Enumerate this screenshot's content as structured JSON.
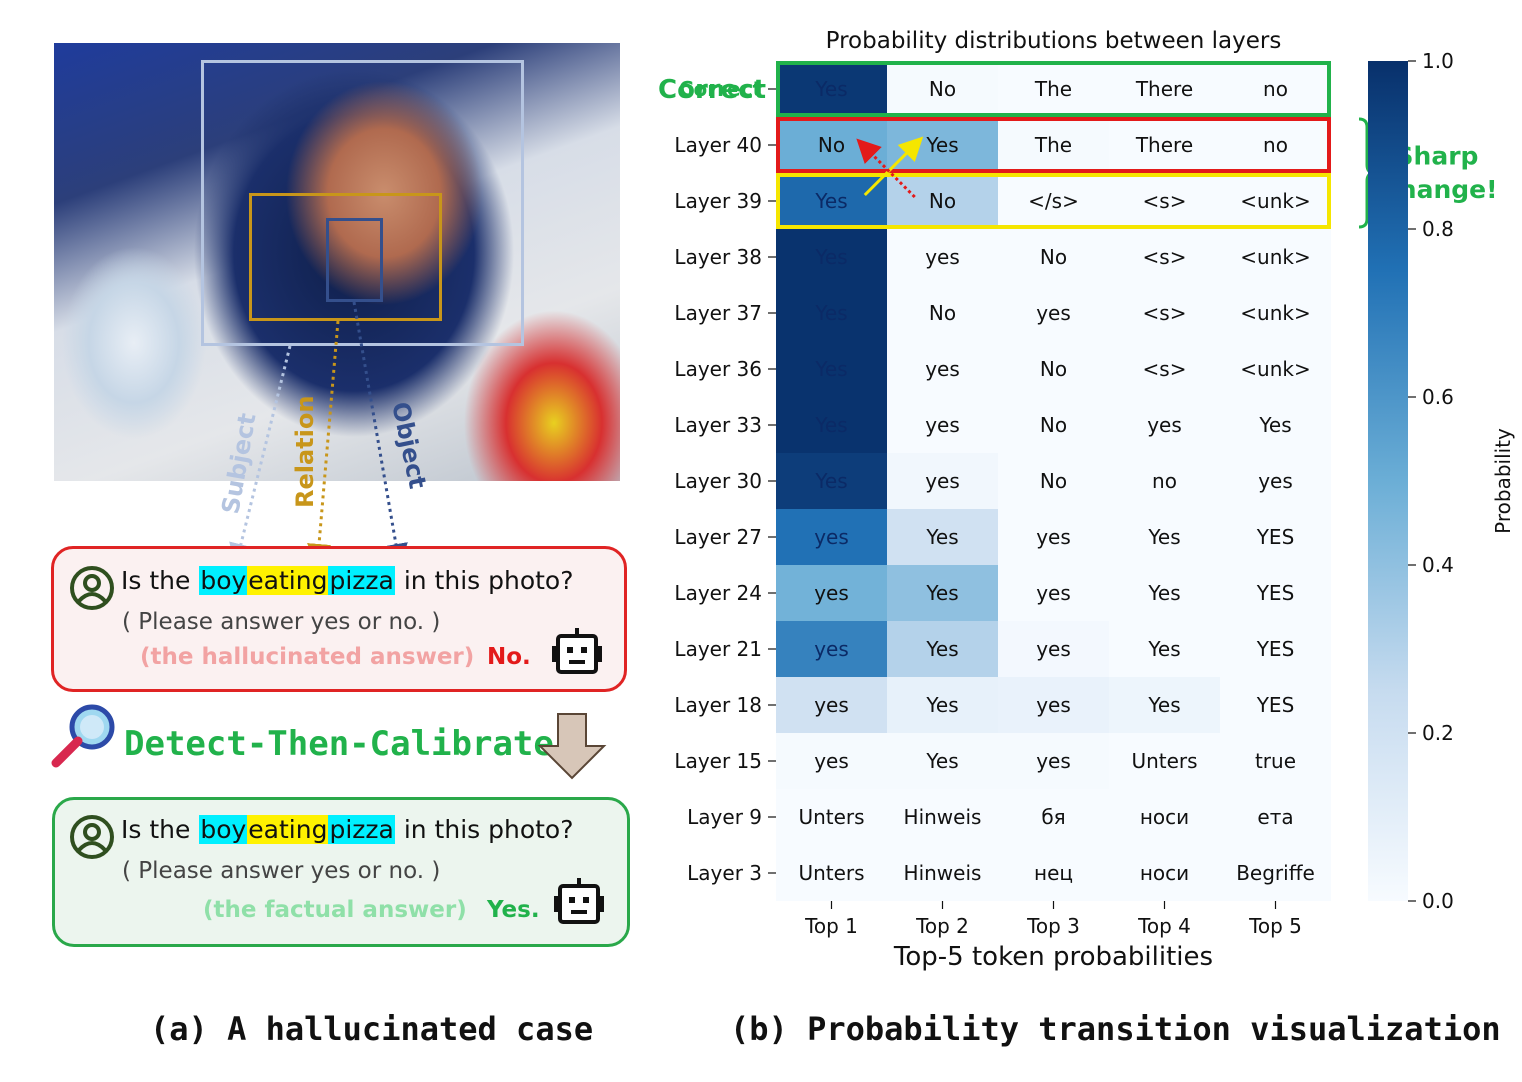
{
  "panel_a": {
    "caption": "(a) A hallucinated case",
    "arrow_labels": {
      "subject": "Subject",
      "relation": "Relation",
      "object": "Object"
    },
    "hallucinated": {
      "q_prefix": "Is the",
      "w_boy": "boy",
      "w_eating": "eating",
      "w_pizza": "pizza",
      "q_suffix": "in this photo?",
      "instruction": "( Please answer yes or no. )",
      "answer_note": "(the hallucinated answer)",
      "answer": "No."
    },
    "method": "Detect-Then-Calibrate",
    "factual": {
      "q_prefix": "Is the",
      "w_boy": "boy",
      "w_eating": "eating",
      "w_pizza": "pizza",
      "q_suffix": "in this photo?",
      "instruction": "( Please answer yes or no. )",
      "answer_note": "(the factual answer)",
      "answer": "Yes."
    },
    "colors": {
      "subject": "#b4c4e0",
      "relation": "#c8961a",
      "object": "#344f8c",
      "bad": "#e31a1a",
      "good": "#21b24b"
    }
  },
  "panel_b": {
    "caption": "(b) Probability transition visualization",
    "annotation_correct": "Correct",
    "annotation_sharp_1": "Sharp",
    "annotation_sharp_2": "Change!"
  },
  "chart_data": {
    "type": "heatmap",
    "title": "Probability distributions between layers",
    "xlabel": "Top-5 token probabilities",
    "colorbar_label": "Probability",
    "colorbar_range": [
      0.0,
      1.0
    ],
    "colorbar_ticks": [
      "0.0",
      "0.2",
      "0.4",
      "0.6",
      "0.8",
      "1.0"
    ],
    "columns": [
      "Top 1",
      "Top 2",
      "Top 3",
      "Top 4",
      "Top 5"
    ],
    "rows": [
      {
        "label": "Correct",
        "tokens": [
          "Yes",
          "No",
          "The",
          "There",
          "no"
        ],
        "probs": [
          0.97,
          0.01,
          0.0,
          0.0,
          0.0
        ]
      },
      {
        "label": "Layer 40",
        "tokens": [
          "No",
          "Yes",
          "The",
          "There",
          "no"
        ],
        "probs": [
          0.5,
          0.45,
          0.01,
          0.0,
          0.0
        ]
      },
      {
        "label": "Layer 39",
        "tokens": [
          "Yes",
          "No",
          "</s>",
          "<s>",
          "<unk>"
        ],
        "probs": [
          0.78,
          0.3,
          0.0,
          0.0,
          0.0
        ]
      },
      {
        "label": "Layer 38",
        "tokens": [
          "Yes",
          "yes",
          "No",
          "<s>",
          "<unk>"
        ],
        "probs": [
          0.99,
          0.0,
          0.0,
          0.0,
          0.0
        ]
      },
      {
        "label": "Layer 37",
        "tokens": [
          "Yes",
          "No",
          "yes",
          "<s>",
          "<unk>"
        ],
        "probs": [
          0.99,
          0.0,
          0.0,
          0.0,
          0.0
        ]
      },
      {
        "label": "Layer 36",
        "tokens": [
          "Yes",
          "yes",
          "No",
          "<s>",
          "<unk>"
        ],
        "probs": [
          0.99,
          0.0,
          0.0,
          0.0,
          0.0
        ]
      },
      {
        "label": "Layer 33",
        "tokens": [
          "Yes",
          "yes",
          "No",
          "yes",
          "Yes"
        ],
        "probs": [
          0.99,
          0.0,
          0.0,
          0.0,
          0.0
        ]
      },
      {
        "label": "Layer 30",
        "tokens": [
          "Yes",
          "yes",
          "No",
          "no",
          "yes"
        ],
        "probs": [
          0.95,
          0.03,
          0.0,
          0.0,
          0.0
        ]
      },
      {
        "label": "Layer 27",
        "tokens": [
          "yes",
          "Yes",
          "yes",
          "Yes",
          "YES"
        ],
        "probs": [
          0.75,
          0.2,
          0.0,
          0.0,
          0.0
        ]
      },
      {
        "label": "Layer 24",
        "tokens": [
          "yes",
          "Yes",
          "yes",
          "Yes",
          "YES"
        ],
        "probs": [
          0.48,
          0.4,
          0.0,
          0.0,
          0.0
        ]
      },
      {
        "label": "Layer 21",
        "tokens": [
          "yes",
          "Yes",
          "yes",
          "Yes",
          "YES"
        ],
        "probs": [
          0.68,
          0.3,
          0.02,
          0.0,
          0.0
        ]
      },
      {
        "label": "Layer 18",
        "tokens": [
          "yes",
          "Yes",
          "yes",
          "Yes",
          "YES"
        ],
        "probs": [
          0.2,
          0.08,
          0.07,
          0.05,
          0.0
        ]
      },
      {
        "label": "Layer 15",
        "tokens": [
          "yes",
          "Yes",
          "yes",
          "Unters",
          "true"
        ],
        "probs": [
          0.01,
          0.01,
          0.01,
          0.0,
          0.0
        ]
      },
      {
        "label": "Layer 9",
        "tokens": [
          "Unters",
          "Hinweis",
          "бя",
          "носи",
          "ета"
        ],
        "probs": [
          0.0,
          0.0,
          0.0,
          0.0,
          0.0
        ]
      },
      {
        "label": "Layer 3",
        "tokens": [
          "Unters",
          "Hinweis",
          "нец",
          "носи",
          "Begriffe"
        ],
        "probs": [
          0.0,
          0.0,
          0.0,
          0.0,
          0.0
        ]
      }
    ]
  }
}
